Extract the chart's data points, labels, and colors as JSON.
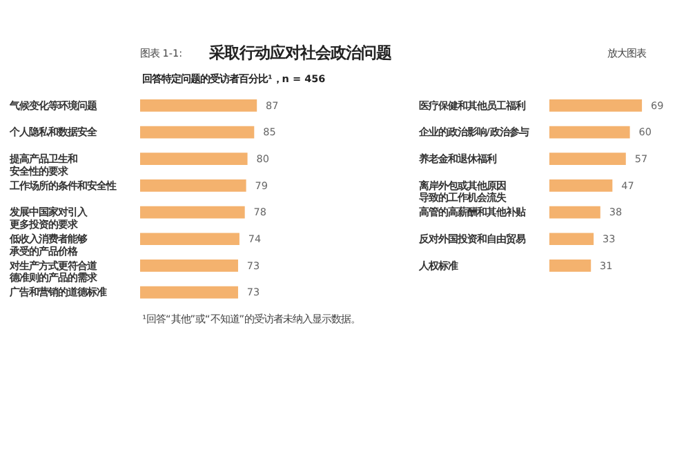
{
  "chart_data": [
    {
      "type": "bar",
      "orientation": "horizontal",
      "data_labels": true,
      "title": "采取行动应对社会政治问题",
      "subtitle": "回答特定问题的受访者百分比¹，n = 456",
      "annotations": [
        "图表 1-1:",
        "放大图表",
        "¹回答“其他”或“不知道”的受访者未纳入显示数据。"
      ],
      "categories": [
        "气候变化等环境问题",
        "个人隐私和数据安全",
        "提高产品卫生和安全性的要求",
        "工作场所的条件和安全性",
        "发展中国家对引入更多投资的要求",
        "低收入消费者能够承受的产品价格",
        "对生产方式更符合道德准则的产品的需求",
        "广告和营销的道德标准"
      ],
      "values": [
        87,
        85,
        80,
        79,
        78,
        74,
        73,
        73
      ],
      "color": "#f4b26e"
    },
    {
      "type": "bar",
      "orientation": "horizontal",
      "data_labels": true,
      "categories": [
        "医疗保健和其他员工福利",
        "企业的政治影响/政治参与",
        "养老金和退休福利",
        "离岸外包或其他原因导致的工作机会流失",
        "高管的高薪酬和其他补贴",
        "反对外国投资和自由贸易",
        "人权标准"
      ],
      "values": [
        69,
        60,
        57,
        47,
        38,
        33,
        31
      ],
      "color": "#f4b26e"
    }
  ]
}
